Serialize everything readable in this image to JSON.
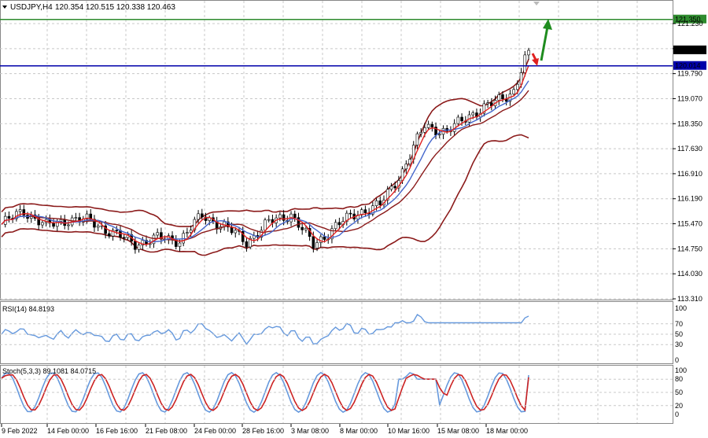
{
  "header": {
    "symbol": "USDJPY,H4",
    "ohlc": "120.354 120.515 120.338 120.463",
    "menu_icon": "triangle-down-icon"
  },
  "main_panel": {
    "price_ticks": [
      "121.230",
      "120.510",
      "119.790",
      "119.070",
      "118.350",
      "117.630",
      "116.910",
      "116.190",
      "115.470",
      "114.750",
      "114.030",
      "113.310"
    ],
    "levels": [
      {
        "value": 121.35,
        "label": "121.350",
        "color": "#2e8b2e"
      },
      {
        "value": 120.014,
        "label": "120.014",
        "color": "#0000aa"
      }
    ],
    "current_price": {
      "value": 120.463,
      "label": "120.463"
    }
  },
  "rsi_panel": {
    "title": "RSI(14) 84.8193",
    "ticks": [
      "100",
      "70",
      "50",
      "30",
      "0"
    ]
  },
  "stoch_panel": {
    "title": "Stoch(5,3,3) 89.1081 84.0715",
    "ticks": [
      "100",
      "80",
      "50",
      "20",
      "0"
    ]
  },
  "time_axis": [
    "9 Feb 2022",
    "14 Feb 00:00",
    "16 Feb 16:00",
    "21 Feb 08:00",
    "24 Feb 00:00",
    "28 Feb 16:00",
    "3 Mar 08:00",
    "8 Mar 00:00",
    "10 Mar 16:00",
    "15 Mar 08:00",
    "18 Mar 00:00"
  ],
  "colors": {
    "bollinger": "#8b1a1a",
    "ma_fast": "#e02020",
    "ma_slow": "#4466cc",
    "rsi_line": "#6699dd",
    "stoch_main": "#6699dd",
    "stoch_signal": "#cc2222",
    "arrow_up": "#1e8c1e",
    "arrow_down": "#e02020"
  },
  "chart_data": {
    "type": "line",
    "symbol": "USDJPY",
    "timeframe": "H4",
    "close_points": [
      {
        "bar": 0,
        "price": 115.45
      },
      {
        "bar": 6,
        "price": 115.85
      },
      {
        "bar": 12,
        "price": 115.4
      },
      {
        "bar": 18,
        "price": 115.6
      },
      {
        "bar": 24,
        "price": 115.55
      },
      {
        "bar": 30,
        "price": 115.2
      },
      {
        "bar": 36,
        "price": 114.9
      },
      {
        "bar": 42,
        "price": 115.05
      },
      {
        "bar": 48,
        "price": 115.0
      },
      {
        "bar": 54,
        "price": 115.7
      },
      {
        "bar": 60,
        "price": 115.4
      },
      {
        "bar": 66,
        "price": 114.95
      },
      {
        "bar": 72,
        "price": 115.5
      },
      {
        "bar": 78,
        "price": 115.75
      },
      {
        "bar": 84,
        "price": 114.85
      },
      {
        "bar": 90,
        "price": 115.4
      },
      {
        "bar": 96,
        "price": 115.8
      },
      {
        "bar": 102,
        "price": 116.0
      },
      {
        "bar": 108,
        "price": 117.0
      },
      {
        "bar": 114,
        "price": 118.3
      },
      {
        "bar": 120,
        "price": 118.1
      },
      {
        "bar": 126,
        "price": 118.6
      },
      {
        "bar": 132,
        "price": 118.9
      },
      {
        "bar": 138,
        "price": 119.3
      },
      {
        "bar": 142,
        "price": 120.46
      }
    ],
    "ylim": [
      113.31,
      121.5
    ],
    "horizontal_levels": [
      121.35,
      120.014
    ],
    "rsi_last": 84.8193,
    "stoch_last": [
      89.1081,
      84.0715
    ]
  }
}
